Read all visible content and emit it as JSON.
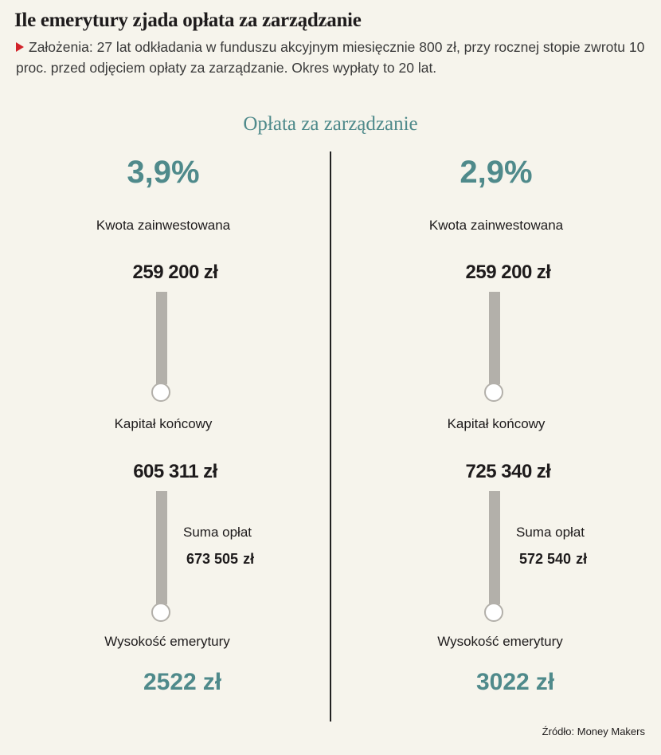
{
  "header": {
    "title": "Ile emerytury zjada opłata za zarządzanie",
    "subtitle": "Założenia: 27 lat odkładania w funduszu akcyjnym miesięcznie 800 zł, przy rocznej stopie zwrotu 10 proc. przed odjęciem opłaty za zarządzanie. Okres wypłaty to 20 lat."
  },
  "section_title": "Opłata za zarządzanie",
  "columns": [
    {
      "fee": "3,9",
      "fee_unit": "%",
      "invested_label": "Kwota zainwestowana",
      "invested": "259 200",
      "invested_unit": "zł",
      "final_label": "Kapitał końcowy",
      "final": "605 311",
      "final_unit": "zł",
      "fees_label": "Suma opłat",
      "fees": "673 505",
      "fees_unit": "zł",
      "pension_label": "Wysokość emerytury",
      "pension": "2522",
      "pension_unit": "zł"
    },
    {
      "fee": "2,9",
      "fee_unit": "%",
      "invested_label": "Kwota zainwestowana",
      "invested": "259 200",
      "invested_unit": "zł",
      "final_label": "Kapitał końcowy",
      "final": "725 340",
      "final_unit": "zł",
      "fees_label": "Suma opłat",
      "fees": "572 540",
      "fees_unit": "zł",
      "pension_label": "Wysokość emerytury",
      "pension": "3022",
      "pension_unit": "zł"
    }
  ],
  "source": "Źródło: Money Makers"
}
